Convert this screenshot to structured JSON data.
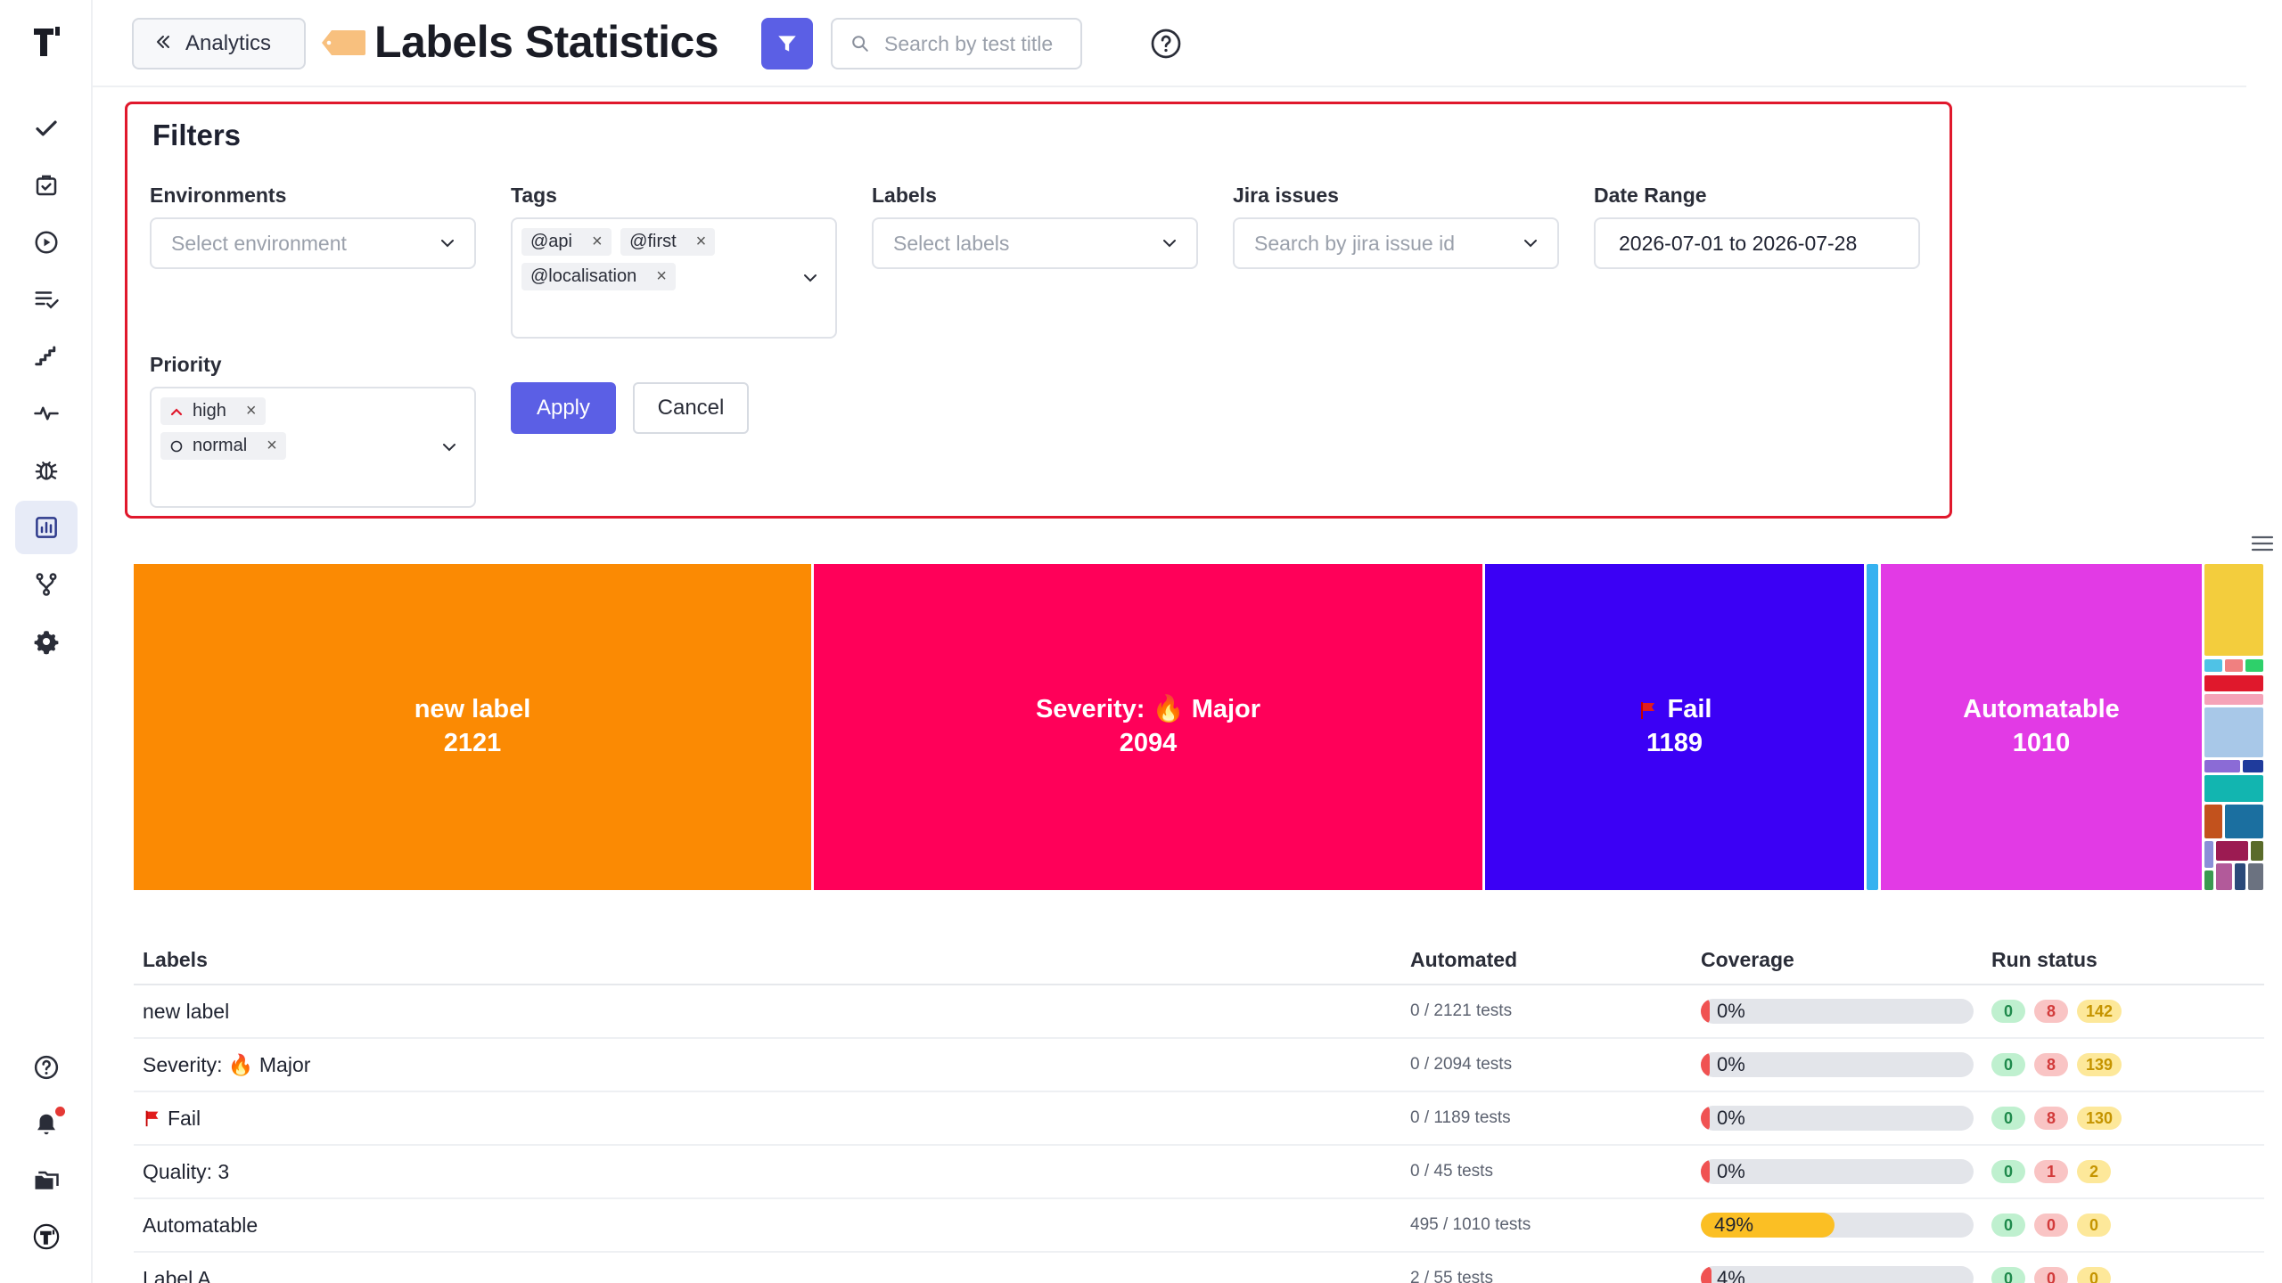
{
  "header": {
    "back_label": "Analytics",
    "title": "Labels Statistics",
    "search_placeholder": "Search by test title"
  },
  "filters": {
    "title": "Filters",
    "environments": {
      "label": "Environments",
      "placeholder": "Select environment"
    },
    "tags": {
      "label": "Tags",
      "chips": [
        "@api",
        "@first",
        "@localisation"
      ]
    },
    "labels": {
      "label": "Labels",
      "placeholder": "Select labels"
    },
    "jira": {
      "label": "Jira issues",
      "placeholder": "Search by jira issue id"
    },
    "date_range": {
      "label": "Date Range",
      "value": "2026-07-01 to 2026-07-28"
    },
    "priority": {
      "label": "Priority",
      "chips": [
        "high",
        "normal"
      ]
    },
    "apply_label": "Apply",
    "cancel_label": "Cancel"
  },
  "treemap": {
    "tiles": [
      {
        "name": "new label",
        "value": "2121",
        "color": "#fb8a03"
      },
      {
        "name": "Severity: 🔥 Major",
        "value": "2094",
        "color": "#ff0059"
      },
      {
        "name": "Fail",
        "value": "1189",
        "color": "#3b00f5"
      },
      {
        "name": "Automatable",
        "value": "1010",
        "color": "#e23ae5"
      }
    ]
  },
  "table": {
    "headers": [
      "Labels",
      "Automated",
      "Coverage",
      "Run status"
    ],
    "rows": [
      {
        "label": "new label",
        "automated": "0 / 2121 tests",
        "coverage": "0%",
        "coverage_pct": 0,
        "status": [
          "0",
          "8",
          "142"
        ]
      },
      {
        "label": "Severity: 🔥 Major",
        "automated": "0 / 2094 tests",
        "coverage": "0%",
        "coverage_pct": 0,
        "status": [
          "0",
          "8",
          "139"
        ]
      },
      {
        "label": "Fail",
        "automated": "0 / 1189 tests",
        "coverage": "0%",
        "coverage_pct": 0,
        "status": [
          "0",
          "8",
          "130"
        ]
      },
      {
        "label": "Quality: 3",
        "automated": "0 / 45 tests",
        "coverage": "0%",
        "coverage_pct": 0,
        "status": [
          "0",
          "1",
          "2"
        ]
      },
      {
        "label": "Automatable",
        "automated": "495 / 1010 tests",
        "coverage": "49%",
        "coverage_pct": 49,
        "status": [
          "0",
          "0",
          "0"
        ]
      },
      {
        "label": "Label A",
        "automated": "2 / 55 tests",
        "coverage": "4%",
        "coverage_pct": 4,
        "status": [
          "0",
          "0",
          "0"
        ]
      }
    ]
  },
  "colors": {
    "accent": "#5b5fe5",
    "filters_border": "#e0182c",
    "coverage_low": "#f05252",
    "coverage_mid": "#fbbf24"
  }
}
